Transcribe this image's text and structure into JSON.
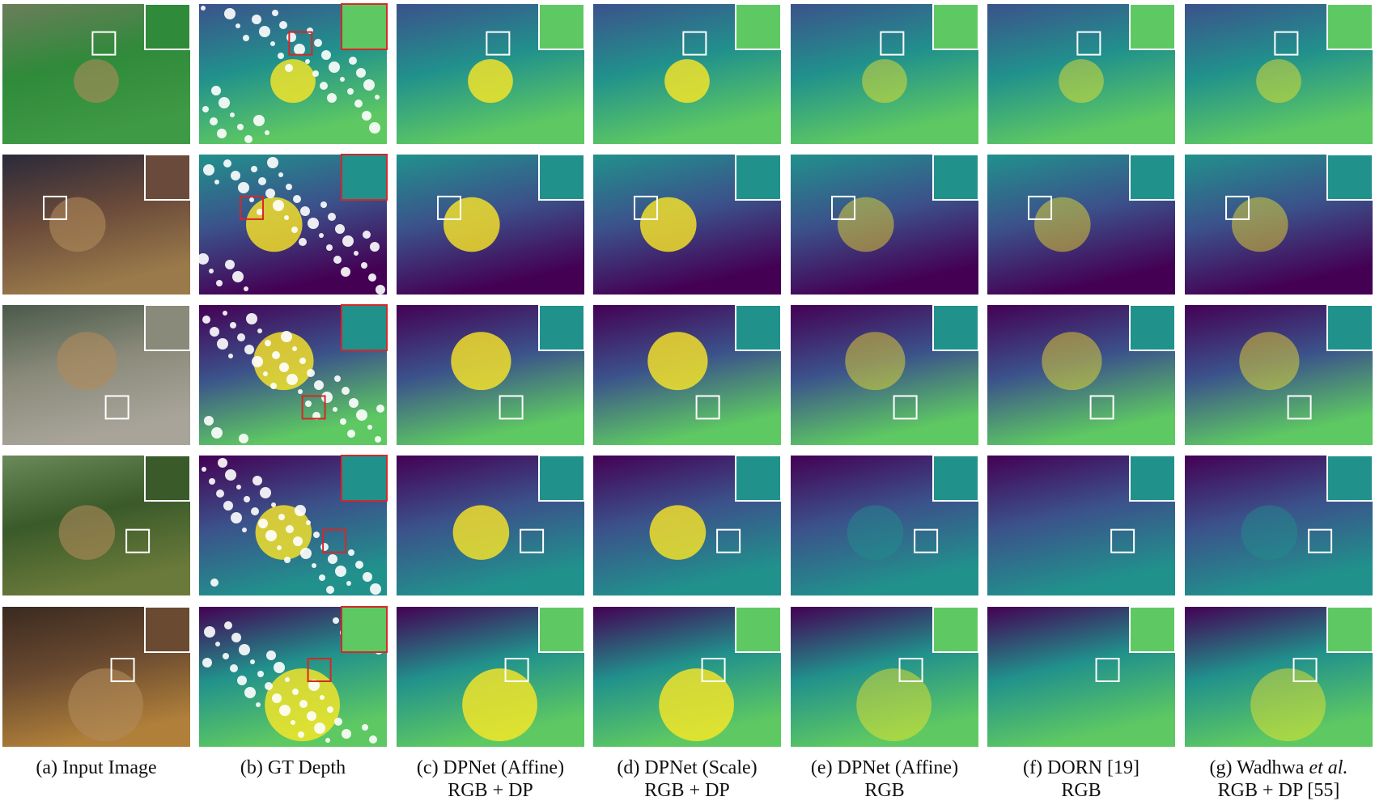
{
  "columns": [
    {
      "caption_line1": "(a)  Input Image"
    },
    {
      "caption_line1": "(b) GT Depth"
    },
    {
      "caption_line1": "(c) DPNet (Affine)",
      "caption_line2": "RGB + DP"
    },
    {
      "caption_line1": "(d)  DPNet (Scale)",
      "caption_line2": "RGB + DP"
    },
    {
      "caption_line1": "(e)  DPNet (Affine)",
      "caption_line2": "RGB"
    },
    {
      "caption_line1": "(f) DORN [19]",
      "caption_line2": "RGB"
    },
    {
      "caption_line1": "(g) Wadhwa",
      "caption_italic": "et al.",
      "caption_line2": "RGB + DP [55]"
    }
  ]
}
